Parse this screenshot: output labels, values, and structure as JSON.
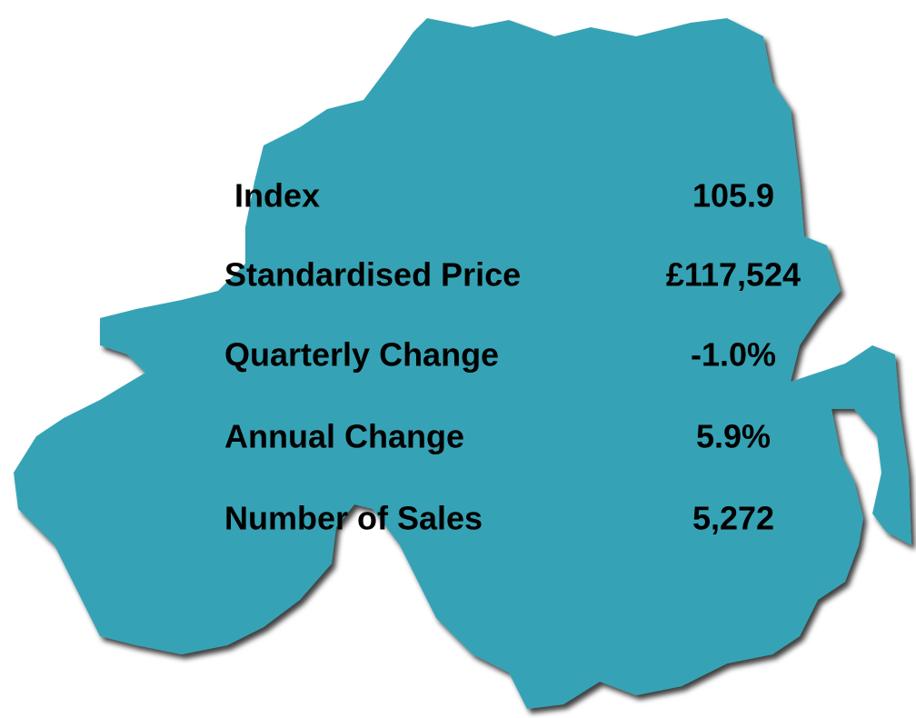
{
  "rows": [
    {
      "label": "Index",
      "value": "105.9"
    },
    {
      "label": "Standardised Price",
      "value": "£117,524"
    },
    {
      "label": "Quarterly Change",
      "value": "-1.0%"
    },
    {
      "label": "Annual Change",
      "value": "5.9%"
    },
    {
      "label": "Number of Sales",
      "value": "5,272"
    }
  ]
}
